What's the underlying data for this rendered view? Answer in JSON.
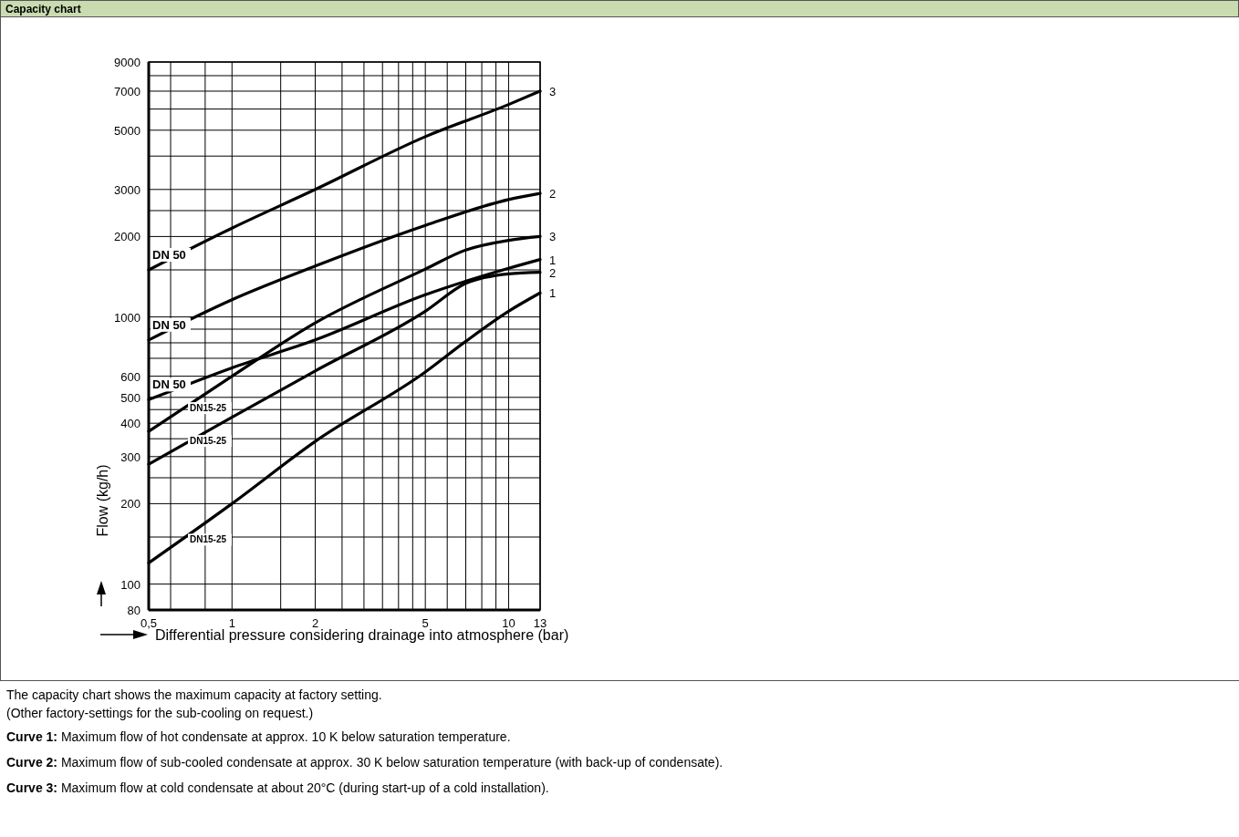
{
  "chart_data": {
    "type": "line",
    "title": "Capacity chart",
    "xlabel": "Differential pressure considering drainage into atmosphere (bar)",
    "ylabel": "Flow (kg/h)",
    "log": "xy",
    "grid": true,
    "legend": false,
    "xlim": [
      0.5,
      13
    ],
    "ylim": [
      80,
      9000
    ],
    "xticks": [
      {
        "value": 0.5,
        "label": "0,5"
      },
      {
        "value": 0.6,
        "label": null
      },
      {
        "value": 0.8,
        "label": null
      },
      1,
      {
        "value": 1.5,
        "label": null
      },
      2,
      {
        "value": 2.5,
        "label": null
      },
      {
        "value": 3,
        "label": null
      },
      {
        "value": 3.5,
        "label": null
      },
      {
        "value": 4,
        "label": null
      },
      {
        "value": 4.5,
        "label": null
      },
      5,
      {
        "value": 6,
        "label": null
      },
      {
        "value": 7,
        "label": null
      },
      {
        "value": 8,
        "label": null
      },
      {
        "value": 9,
        "label": null
      },
      10,
      13
    ],
    "yticks": [
      80,
      100,
      {
        "value": 150,
        "label": null
      },
      200,
      {
        "value": 250,
        "label": null
      },
      300,
      {
        "value": 350,
        "label": null
      },
      400,
      {
        "value": 450,
        "label": null
      },
      500,
      600,
      {
        "value": 700,
        "label": null
      },
      {
        "value": 800,
        "label": null
      },
      {
        "value": 900,
        "label": null
      },
      1000,
      {
        "value": 1500,
        "label": null
      },
      2000,
      {
        "value": 2500,
        "label": null
      },
      3000,
      {
        "value": 4000,
        "label": null
      },
      5000,
      {
        "value": 6000,
        "label": null
      },
      7000,
      {
        "value": 8000,
        "label": null
      },
      9000
    ],
    "series": [
      {
        "name": "3",
        "color": "#000000",
        "x": [
          0.5,
          1,
          2,
          5,
          10,
          13
        ],
        "values": [
          1500,
          2150,
          3000,
          4730,
          6240,
          7000
        ]
      },
      {
        "name": "2",
        "color": "#000000",
        "x": [
          0.5,
          1,
          2,
          5,
          10,
          13
        ],
        "values": [
          820,
          1160,
          1550,
          2200,
          2750,
          2900
        ]
      },
      {
        "name": "1",
        "color": "#000000",
        "x": [
          0.5,
          1,
          2,
          5,
          10,
          13
        ],
        "values": [
          490,
          645,
          820,
          1210,
          1520,
          1640
        ]
      },
      {
        "name": "3",
        "color": "#000000",
        "x": [
          0.5,
          1,
          2,
          5,
          7,
          10,
          13
        ],
        "values": [
          373,
          600,
          950,
          1510,
          1780,
          1935,
          2000
        ]
      },
      {
        "name": "2",
        "color": "#000000",
        "x": [
          0.5,
          1,
          2,
          5,
          7,
          10,
          13
        ],
        "values": [
          281,
          421,
          628,
          1050,
          1335,
          1450,
          1470
        ]
      },
      {
        "name": "1",
        "color": "#000000",
        "x": [
          0.5,
          1,
          2,
          5,
          7,
          10,
          13
        ],
        "values": [
          120,
          200,
          342,
          622,
          810,
          1050,
          1230
        ]
      }
    ],
    "annotations": [
      "DN 50",
      "DN 50",
      "DN 50",
      "DN15-25",
      "DN15-25",
      "DN15-25",
      "The capacity chart shows the maximum capacity at factory setting.",
      "(Other factory-settings for the sub-cooling on request.)",
      "Curve 1: Maximum flow of hot condensate at approx. 10 K below saturation temperature.",
      "Curve 2: Maximum flow of sub-cooled condensate at approx. 30 K below saturation temperature (with back-up of condensate).",
      "Curve 3: Maximum flow at cold condensate at about 20°C (during start-up of a cold installation)."
    ]
  }
}
